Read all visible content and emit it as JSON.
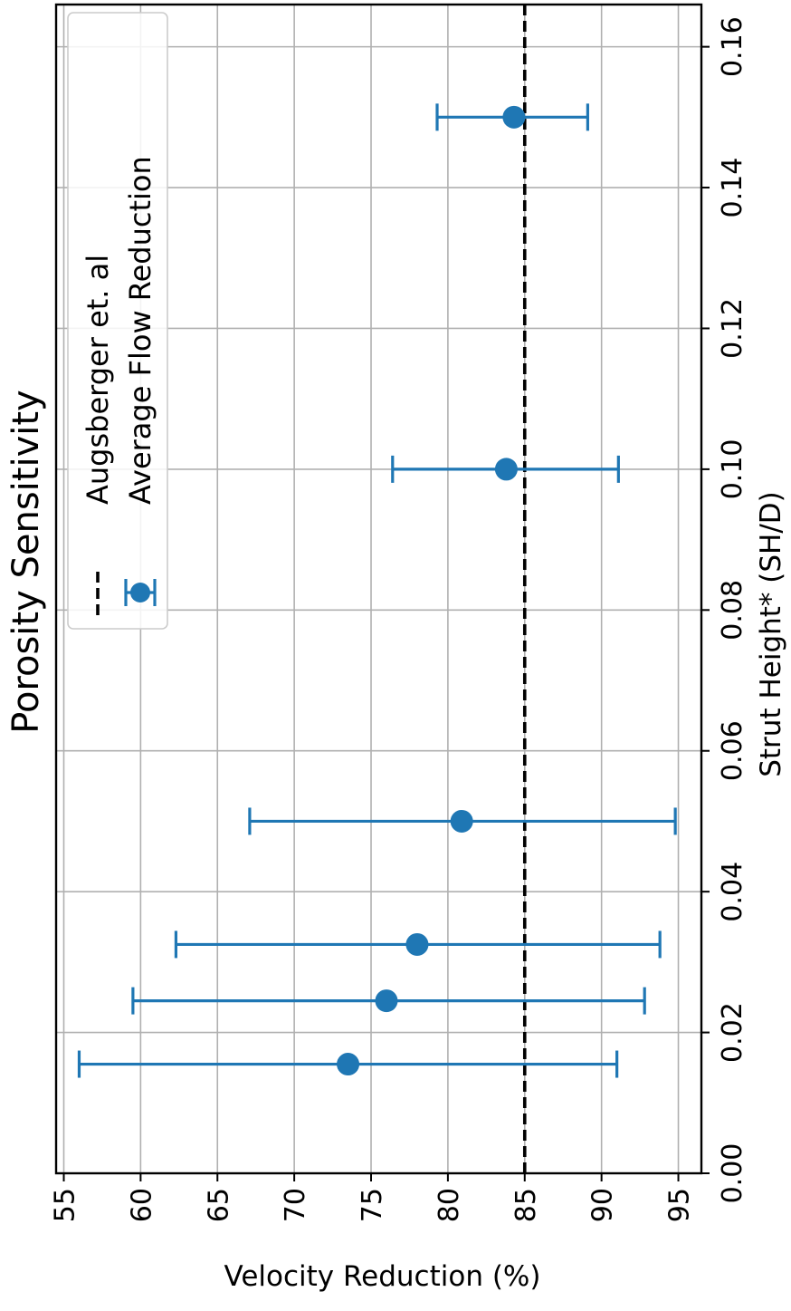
{
  "chart_data": {
    "type": "scatter",
    "title": "Porosity Sensitivity",
    "xlabel": "Strut Height* (SH/D)",
    "ylabel": "Velocity Reduction (%)",
    "xlim": [
      0.0,
      0.166
    ],
    "ylim": [
      96.5,
      54.5
    ],
    "x_axis_placement": "right",
    "y_axis_placement": "bottom",
    "x_ticks": [
      "0.00",
      "0.02",
      "0.04",
      "0.06",
      "0.08",
      "0.10",
      "0.12",
      "0.14",
      "0.16"
    ],
    "y_ticks": [
      "95",
      "90",
      "85",
      "80",
      "75",
      "70",
      "65",
      "60",
      "55"
    ],
    "grid": true,
    "legend_position": "top-right",
    "series": [
      {
        "name": "Average Flow Reduction",
        "kind": "errorbar",
        "color": "#1f77b4",
        "points": [
          {
            "x": 0.0155,
            "y": 73.5,
            "ymin": 56.0,
            "ymax": 91.0
          },
          {
            "x": 0.0245,
            "y": 76.0,
            "ymin": 59.5,
            "ymax": 92.8
          },
          {
            "x": 0.0325,
            "y": 78.0,
            "ymin": 62.3,
            "ymax": 93.8
          },
          {
            "x": 0.05,
            "y": 80.9,
            "ymin": 67.1,
            "ymax": 94.8
          },
          {
            "x": 0.1,
            "y": 83.8,
            "ymin": 76.4,
            "ymax": 91.1
          },
          {
            "x": 0.15,
            "y": 84.3,
            "ymin": 79.3,
            "ymax": 89.1
          }
        ]
      },
      {
        "name": "Augsberger et. al",
        "kind": "hline",
        "color": "#000000",
        "y": 85.0
      }
    ]
  }
}
